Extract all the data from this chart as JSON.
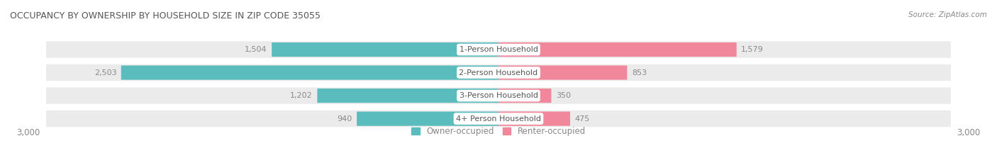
{
  "title": "OCCUPANCY BY OWNERSHIP BY HOUSEHOLD SIZE IN ZIP CODE 35055",
  "source": "Source: ZipAtlas.com",
  "categories": [
    "1-Person Household",
    "2-Person Household",
    "3-Person Household",
    "4+ Person Household"
  ],
  "owner_values": [
    1504,
    2503,
    1202,
    940
  ],
  "renter_values": [
    1579,
    853,
    350,
    475
  ],
  "max_scale": 3000,
  "owner_color": "#5bbcbd",
  "renter_color": "#f0879a",
  "bg_color": "#ffffff",
  "row_bg_color": "#ebebeb",
  "label_bg_color": "#ffffff",
  "title_color": "#555555",
  "tick_color": "#888888",
  "legend_owner": "Owner-occupied",
  "legend_renter": "Renter-occupied"
}
